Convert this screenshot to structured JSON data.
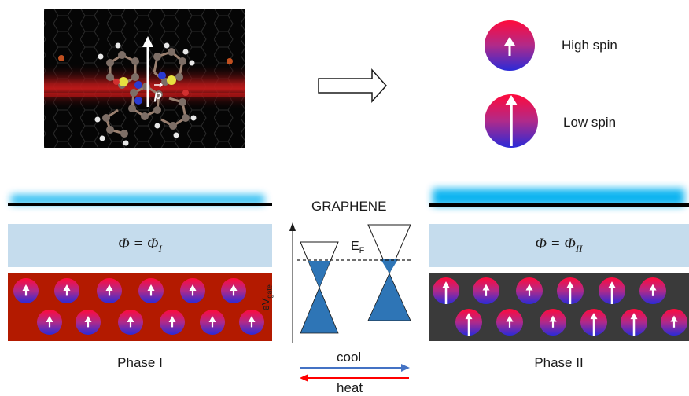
{
  "molecule": {
    "vector_label": "p"
  },
  "legend": {
    "high_spin": "High spin",
    "low_spin": "Low spin"
  },
  "center": {
    "graphene": "GRAPHENE",
    "ef": "E",
    "ef_sub": "F",
    "gate": "eV",
    "gate_sub": "gate",
    "cool": "cool",
    "heat": "heat"
  },
  "phase1": {
    "phi": "Φ = Φ",
    "phi_sub": "I",
    "label": "Phase I"
  },
  "phase2": {
    "phi": "Φ = Φ",
    "phi_sub": "II",
    "label": "Phase II"
  },
  "colors": {
    "phase1_bg": "#b31a00",
    "phase2_bg": "#3a3a3a",
    "work_function": "#c5dced",
    "graphene_glow": "#00b0f0",
    "dirac_fill": "#2e75b6",
    "cool_arrow": "#4472c4",
    "heat_arrow": "#ff0000",
    "spin_top": "#ff0a3c",
    "spin_bottom": "#2a2ad8"
  }
}
